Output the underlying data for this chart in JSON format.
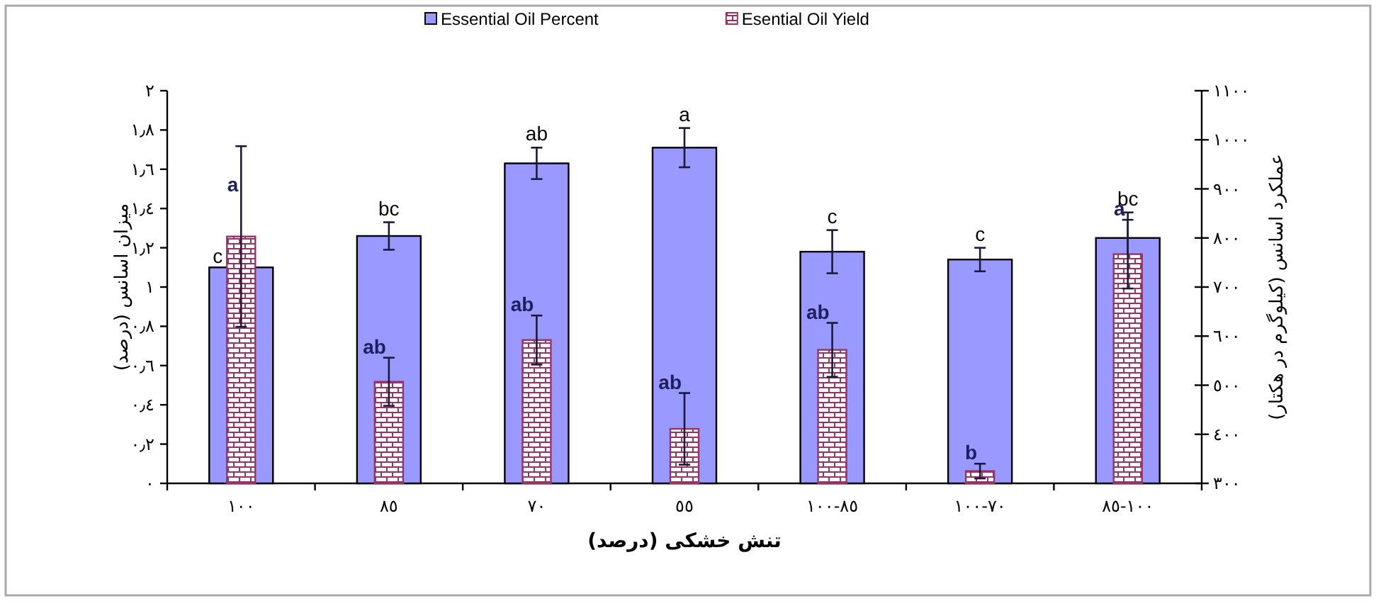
{
  "chart_data": {
    "type": "bar",
    "xlabel": "تنش خشکی (درصد)",
    "ylabel": "میزان اسانس (درصد)",
    "y2label": "عملکرد اسانس (کیلوگرم در هکتار)",
    "categories": [
      "١٠٠",
      "٨٥",
      "٧٠",
      "٥٥",
      "٨٥-١٠٠",
      "٧٠-١٠٠",
      "١٠٠-٨٥"
    ],
    "series": [
      {
        "name": "Essential Oil Percent",
        "color": "#9999ff",
        "values": [
          1.1,
          1.26,
          1.63,
          1.71,
          1.18,
          1.14,
          1.25
        ],
        "errors": [
          null,
          0.07,
          0.08,
          0.1,
          0.11,
          0.06,
          0.13
        ],
        "value_labels": [
          "c",
          "bc",
          "ab",
          "a",
          "c",
          "c",
          "bc"
        ]
      },
      {
        "name": "Esential Oil Yield",
        "color": "#993366",
        "axis": "y2",
        "values": [
          803,
          507,
          592,
          411,
          572,
          325,
          767
        ],
        "errors": [
          184,
          49,
          50,
          73,
          55,
          15,
          70
        ],
        "value_labels": [
          "a",
          "ab",
          "ab",
          "ab",
          "ab",
          "b",
          "a"
        ]
      }
    ],
    "ylim": [
      0,
      2
    ],
    "yticks": [
      {
        "value": 0,
        "label": "٠"
      },
      {
        "value": 0.2,
        "label": "٠٫٢"
      },
      {
        "value": 0.4,
        "label": "٠٫٤"
      },
      {
        "value": 0.6,
        "label": "٠٫٦"
      },
      {
        "value": 0.8,
        "label": "٠٫٨"
      },
      {
        "value": 1,
        "label": "١"
      },
      {
        "value": 1.2,
        "label": "١٫٢"
      },
      {
        "value": 1.4,
        "label": "١٫٤"
      },
      {
        "value": 1.6,
        "label": "١٫٦"
      },
      {
        "value": 1.8,
        "label": "١٫٨"
      },
      {
        "value": 2,
        "label": "٢"
      }
    ],
    "y2lim": [
      300,
      1100
    ],
    "y2ticks": [
      {
        "value": 300,
        "label": "٣٠٠"
      },
      {
        "value": 400,
        "label": "٤٠٠"
      },
      {
        "value": 500,
        "label": "٥٠٠"
      },
      {
        "value": 600,
        "label": "٦٠٠"
      },
      {
        "value": 700,
        "label": "٧٠٠"
      },
      {
        "value": 800,
        "label": "٨٠٠"
      },
      {
        "value": 900,
        "label": "٩٠٠"
      },
      {
        "value": 1000,
        "label": "١٠٠٠"
      },
      {
        "value": 1100,
        "label": "١١٠٠"
      }
    ],
    "legend": "top"
  }
}
